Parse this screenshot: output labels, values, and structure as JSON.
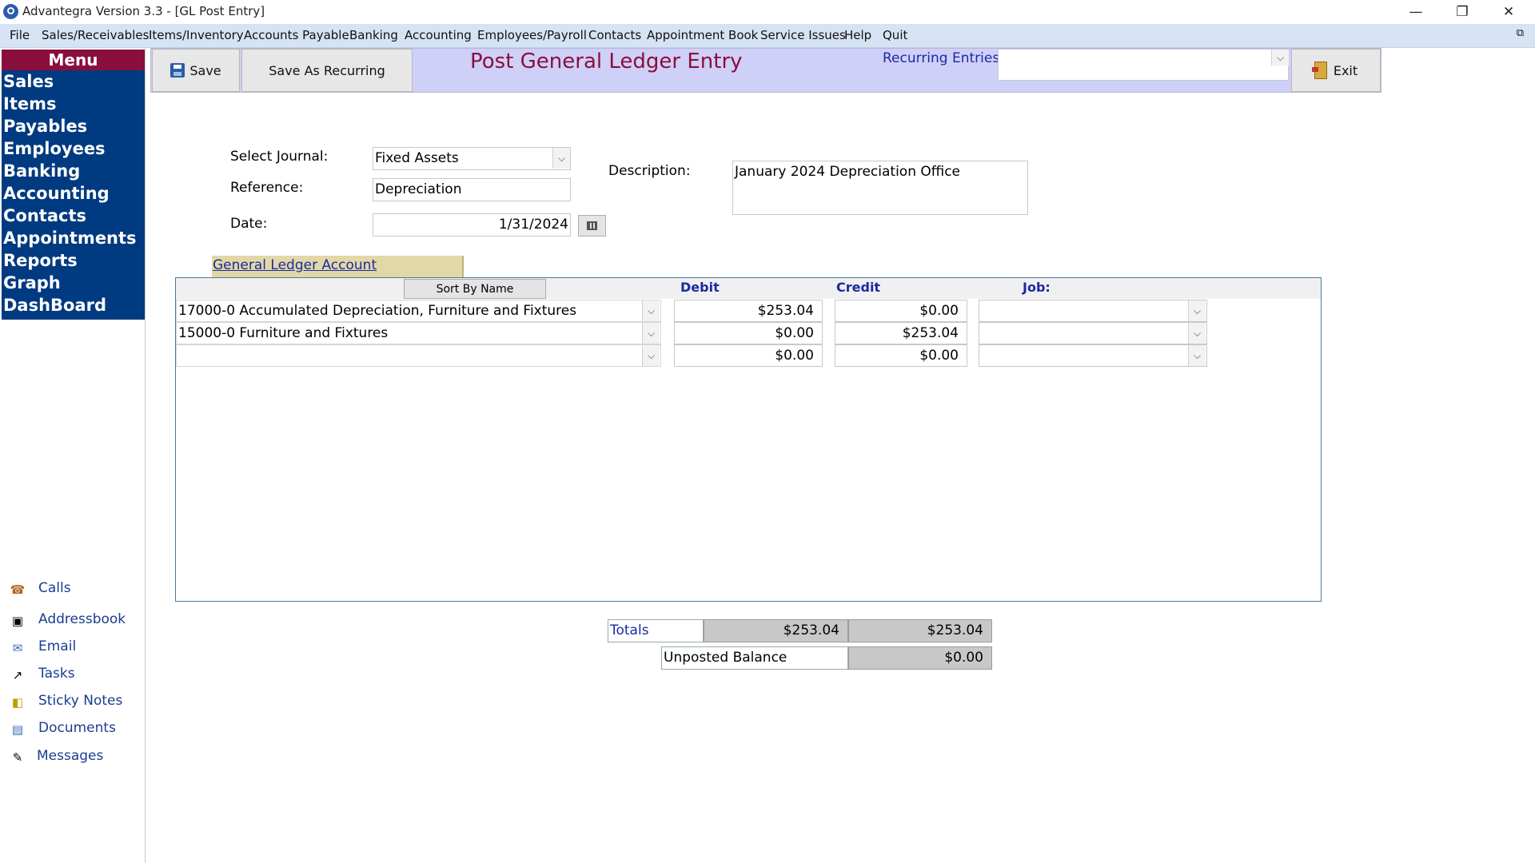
{
  "window": {
    "title": "Advantegra Version 3.3 - [GL Post Entry]",
    "minimize": "—",
    "maximize": "❐",
    "close": "✕",
    "restore_child": "⧉"
  },
  "menubar": {
    "items": [
      "File",
      "Sales/Receivables",
      "Items/Inventory",
      "Accounts Payable",
      "Banking",
      "Accounting",
      "Employees/Payroll",
      "Contacts",
      "Appointment Book",
      "Service Issues",
      "Help",
      "Quit"
    ]
  },
  "nav": {
    "header": "Menu",
    "items": [
      "Sales",
      "Items",
      "Payables",
      "Employees",
      "Banking",
      "Accounting",
      "Contacts",
      "Appointments",
      "Reports",
      "Graph",
      "DashBoard"
    ],
    "tools": [
      {
        "label": "Calls",
        "icon": "phone-icon"
      },
      {
        "label": "Addressbook",
        "icon": "addressbook-icon"
      },
      {
        "label": "Email",
        "icon": "email-icon"
      },
      {
        "label": "Tasks",
        "icon": "tasks-icon"
      },
      {
        "label": "Sticky Notes",
        "icon": "sticky-notes-icon"
      },
      {
        "label": "Documents",
        "icon": "documents-icon"
      },
      {
        "label": "Messages",
        "icon": "messages-icon"
      }
    ]
  },
  "toolbar": {
    "save_label": "Save",
    "save_recurring_label": "Save As Recurring",
    "page_title": "Post General Ledger Entry",
    "recurring_label": "Recurring Entries",
    "recurring_value": "",
    "exit_label": "Exit"
  },
  "form": {
    "journal_label": "Select Journal:",
    "journal_value": "Fixed Assets",
    "reference_label": "Reference:",
    "reference_value": "Depreciation",
    "date_label": "Date:",
    "date_value": "1/31/2024",
    "description_label": "Description:",
    "description_value": "January 2024 Depreciation Office"
  },
  "grid": {
    "account_tab": "General Ledger Account",
    "sort_button": "Sort By Name",
    "headers": {
      "debit": "Debit",
      "credit": "Credit",
      "job": "Job:"
    },
    "rows": [
      {
        "account": "17000-0 Accumulated Depreciation, Furniture and Fixtures",
        "debit": "$253.04",
        "credit": "$0.00",
        "job": ""
      },
      {
        "account": "15000-0 Furniture and Fixtures",
        "debit": "$0.00",
        "credit": "$253.04",
        "job": ""
      },
      {
        "account": "",
        "debit": "$0.00",
        "credit": "$0.00",
        "job": ""
      }
    ]
  },
  "totals": {
    "label": "Totals",
    "debit": "$253.04",
    "credit": "$253.04",
    "unposted_label": "Unposted Balance",
    "unposted_value": "$0.00"
  }
}
